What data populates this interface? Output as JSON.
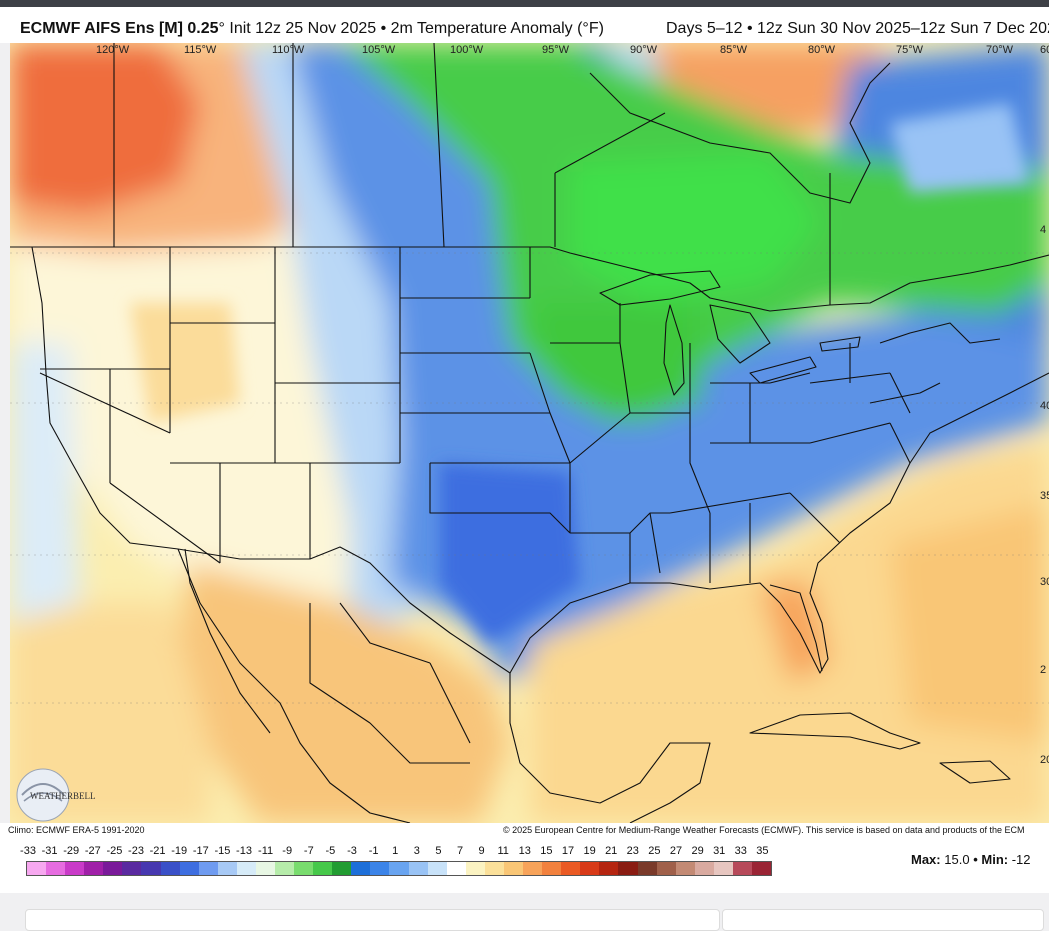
{
  "header": {
    "model": "ECMWF AIFS Ens [M] 0.25",
    "init": "° Init 12z 25 Nov 2025 • 2m Temperature Anomaly (°F)",
    "period": "Days 5–12 • 12z Sun 30 Nov 2025–12z Sun 7 Dec 202"
  },
  "map": {
    "longitude_labels": [
      "120°W",
      "115°W",
      "110°W",
      "105°W",
      "100°W",
      "95°W",
      "90°W",
      "85°W",
      "80°W",
      "75°W",
      "70°W",
      "60"
    ],
    "latitude_labels": [
      "4",
      "40",
      "35",
      "30",
      "2",
      "20"
    ],
    "logo_text": "WEATHERBELL",
    "regions": {
      "cold_core": "central and southern plains (blue)",
      "coldest": "Upper Midwest / Great Lakes / Canada (green)",
      "warm": "western Canada, Hudson Bay, Mexico, Gulf & Atlantic (orange/yellow)"
    }
  },
  "footer": {
    "climo": "Climo: ECMWF ERA-5 1991-2020",
    "copyright": "© 2025 European Centre for Medium-Range Weather Forecasts (ECMWF). This service is based on data and products of the ECM",
    "scale_ticks": [
      "-33",
      "-31",
      "-29",
      "-27",
      "-25",
      "-23",
      "-21",
      "-19",
      "-17",
      "-15",
      "-13",
      "-11",
      "-9",
      "-7",
      "-5",
      "-3",
      "-1",
      "1",
      "3",
      "5",
      "7",
      "9",
      "11",
      "13",
      "15",
      "17",
      "19",
      "21",
      "23",
      "25",
      "27",
      "29",
      "31",
      "33",
      "35"
    ],
    "max_label": "Max:",
    "max_value": "15.0",
    "separator": "•",
    "min_label": "Min:",
    "min_value": "-12"
  },
  "colorbar_colors": [
    "#f7a8f0",
    "#e66ce0",
    "#c93bc8",
    "#a020a8",
    "#7a1a9a",
    "#5a2aa0",
    "#4738b0",
    "#3a50c8",
    "#3e6ee0",
    "#6f9bf0",
    "#a7c9f5",
    "#d6ebf8",
    "#e8f7e4",
    "#b6ecaa",
    "#79dc6e",
    "#46c84a",
    "#229c32",
    "#1d6fd9",
    "#3c84e8",
    "#69a4f0",
    "#99c3f5",
    "#c8e2f9",
    "#ffffff",
    "#fbf3c2",
    "#fbe09a",
    "#f9c676",
    "#f7a35a",
    "#f2813e",
    "#ea5a24",
    "#d83a18",
    "#b52510",
    "#8a1c12",
    "#7a3a2a",
    "#a0604a",
    "#c38a74",
    "#d9aaa0",
    "#e7c6c0",
    "#b74a5a",
    "#9a2434"
  ]
}
